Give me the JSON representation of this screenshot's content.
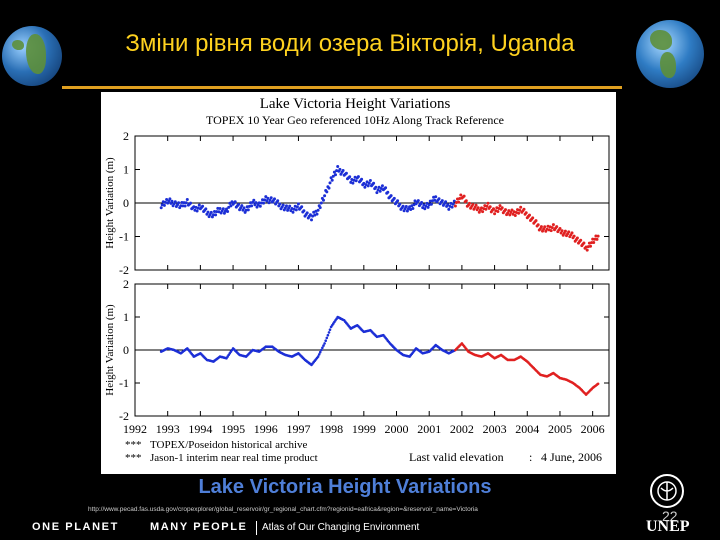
{
  "slide": {
    "title": "Зміни рівня води озера Вікторія, Uganda",
    "caption": "Lake Victoria Height Variations",
    "source_url": "http://www.pecad.fas.usda.gov/cropexplorer/global_reservoir/gr_regional_chart.cfm?regionid=eafrica&region=&reservoir_name=Victoria",
    "page_number": "22",
    "footer": {
      "one_planet": "ONE PLANET",
      "many_people": "MANY PEOPLE",
      "atlas": "Atlas of Our Changing Environment",
      "unep": "UNEP"
    }
  },
  "colors": {
    "title": "#ffd21f",
    "rule": "#e0a020",
    "caption": "#4f7fd8",
    "topex": "#1c2fd6",
    "jason": "#e02020",
    "legend_topex": "#3030d0",
    "legend_jason": "#e03030"
  },
  "icons": {
    "left": "earth-globe-africa-icon",
    "right": "earth-globe-americas-icon",
    "logo": "unep-emblem-icon"
  },
  "chart_data": {
    "type": "scatter",
    "title": "Lake Victoria Height Variations",
    "subtitle": "TOPEX 10 Year Geo referenced 10Hz Along Track Reference",
    "panels": [
      {
        "ylabel": "Height Variation (m)",
        "ylim": [
          -2,
          2
        ],
        "yticks": [
          "2",
          "1",
          "0",
          "-1",
          "-2"
        ]
      },
      {
        "ylabel": "Height Variation (m)",
        "ylim": [
          -2,
          2
        ],
        "yticks": [
          "2",
          "1",
          "0",
          "-1",
          "-2"
        ]
      }
    ],
    "x_ticks": [
      "1992",
      "1993",
      "1994",
      "1995",
      "1996",
      "1997",
      "1998",
      "1999",
      "2000",
      "2001",
      "2002",
      "2003",
      "2004",
      "2005",
      "2006"
    ],
    "xlim": [
      1992,
      2006.5
    ],
    "series": [
      {
        "name": "TOPEX/Poseidon historical archive",
        "points": [
          [
            1992.8,
            -0.05
          ],
          [
            1993.0,
            0.05
          ],
          [
            1993.2,
            0.0
          ],
          [
            1993.4,
            -0.1
          ],
          [
            1993.6,
            0.05
          ],
          [
            1993.8,
            -0.2
          ],
          [
            1994.0,
            -0.1
          ],
          [
            1994.2,
            -0.3
          ],
          [
            1994.4,
            -0.35
          ],
          [
            1994.6,
            -0.2
          ],
          [
            1994.8,
            -0.25
          ],
          [
            1995.0,
            0.05
          ],
          [
            1995.2,
            -0.15
          ],
          [
            1995.4,
            -0.2
          ],
          [
            1995.6,
            0.0
          ],
          [
            1995.8,
            -0.05
          ],
          [
            1996.0,
            0.1
          ],
          [
            1996.2,
            0.1
          ],
          [
            1996.4,
            -0.05
          ],
          [
            1996.6,
            -0.15
          ],
          [
            1996.8,
            -0.2
          ],
          [
            1997.0,
            -0.1
          ],
          [
            1997.2,
            -0.3
          ],
          [
            1997.4,
            -0.45
          ],
          [
            1997.6,
            -0.2
          ],
          [
            1997.8,
            0.2
          ],
          [
            1998.0,
            0.7
          ],
          [
            1998.2,
            1.0
          ],
          [
            1998.4,
            0.9
          ],
          [
            1998.6,
            0.65
          ],
          [
            1998.8,
            0.75
          ],
          [
            1999.0,
            0.55
          ],
          [
            1999.2,
            0.6
          ],
          [
            1999.4,
            0.4
          ],
          [
            1999.6,
            0.45
          ],
          [
            1999.8,
            0.2
          ],
          [
            2000.0,
            0.0
          ],
          [
            2000.2,
            -0.15
          ],
          [
            2000.4,
            -0.2
          ],
          [
            2000.6,
            0.05
          ],
          [
            2000.8,
            -0.1
          ],
          [
            2001.0,
            -0.05
          ],
          [
            2001.2,
            0.15
          ],
          [
            2001.4,
            0.0
          ],
          [
            2001.6,
            -0.1
          ],
          [
            2001.8,
            0.0
          ]
        ]
      },
      {
        "name": "Jason-1 interim near real time product",
        "points": [
          [
            2001.8,
            0.0
          ],
          [
            2002.0,
            0.2
          ],
          [
            2002.2,
            -0.05
          ],
          [
            2002.4,
            -0.15
          ],
          [
            2002.6,
            -0.2
          ],
          [
            2002.8,
            -0.1
          ],
          [
            2003.0,
            -0.25
          ],
          [
            2003.2,
            -0.15
          ],
          [
            2003.4,
            -0.3
          ],
          [
            2003.6,
            -0.3
          ],
          [
            2003.8,
            -0.2
          ],
          [
            2004.0,
            -0.35
          ],
          [
            2004.2,
            -0.55
          ],
          [
            2004.4,
            -0.75
          ],
          [
            2004.6,
            -0.8
          ],
          [
            2004.8,
            -0.7
          ],
          [
            2005.0,
            -0.85
          ],
          [
            2005.2,
            -0.9
          ],
          [
            2005.4,
            -1.0
          ],
          [
            2005.6,
            -1.15
          ],
          [
            2005.8,
            -1.35
          ],
          [
            2006.0,
            -1.15
          ],
          [
            2006.2,
            -1.0
          ]
        ]
      }
    ],
    "legend": [
      {
        "marker": "***",
        "label": "TOPEX/Poseidon historical archive"
      },
      {
        "marker": "***",
        "label": "Jason-1 interim near real time product"
      }
    ],
    "annotation": {
      "label": "Last valid elevation",
      "separator": ":",
      "value": "4 June, 2006"
    }
  }
}
